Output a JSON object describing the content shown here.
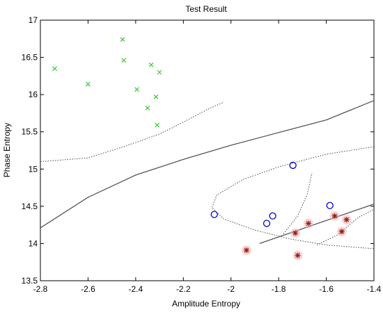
{
  "chart_data": {
    "type": "scatter",
    "title": "Test Result",
    "xlabel": "Amplitude Entropy",
    "ylabel": "Phase Entropy",
    "xlim": [
      -2.8,
      -1.4
    ],
    "ylim": [
      13.5,
      17
    ],
    "xticks": [
      -2.8,
      -2.6,
      -2.4,
      -2.2,
      -2.0,
      -1.8,
      -1.6,
      -1.4
    ],
    "xtick_labels": [
      "-2.8",
      "-2.6",
      "-2.4",
      "-2.2",
      "-2",
      "-1.8",
      "-1.6",
      "-1.4"
    ],
    "yticks": [
      13.5,
      14,
      14.5,
      15,
      15.5,
      16,
      16.5,
      17
    ],
    "ytick_labels": [
      "13.5",
      "14",
      "14.5",
      "15",
      "15.5",
      "16",
      "16.5",
      "17"
    ],
    "grid": false,
    "series": [
      {
        "marker": "x",
        "color": "#33cc33",
        "points": [
          [
            -2.74,
            16.35
          ],
          [
            -2.6,
            16.14
          ],
          [
            -2.455,
            16.74
          ],
          [
            -2.45,
            16.46
          ],
          [
            -2.395,
            16.07
          ],
          [
            -2.335,
            16.4
          ],
          [
            -2.315,
            15.97
          ],
          [
            -2.3,
            16.3
          ],
          [
            -2.35,
            15.82
          ],
          [
            -2.31,
            15.59
          ]
        ]
      },
      {
        "marker": "o",
        "color": "#0000cc",
        "points": [
          [
            -2.07,
            14.39
          ],
          [
            -1.85,
            14.27
          ],
          [
            -1.825,
            14.37
          ],
          [
            -1.74,
            15.05
          ],
          [
            -1.585,
            14.51
          ]
        ]
      },
      {
        "marker": "*",
        "color": "#8b2500",
        "points": [
          [
            -1.935,
            13.91
          ],
          [
            -1.73,
            14.14
          ],
          [
            -1.72,
            13.84
          ],
          [
            -1.675,
            14.27
          ],
          [
            -1.565,
            14.37
          ],
          [
            -1.535,
            14.16
          ],
          [
            -1.515,
            14.32
          ]
        ]
      }
    ],
    "lines": [
      {
        "style": "solid",
        "color": "#555555",
        "points": [
          [
            -2.8,
            14.21
          ],
          [
            -2.6,
            14.62
          ],
          [
            -2.4,
            14.92
          ],
          [
            -2.2,
            15.13
          ],
          [
            -2.0,
            15.32
          ],
          [
            -1.8,
            15.49
          ],
          [
            -1.6,
            15.66
          ],
          [
            -1.4,
            15.92
          ]
        ]
      },
      {
        "style": "solid",
        "color": "#555555",
        "points": [
          [
            -1.88,
            14.0
          ],
          [
            -1.4,
            14.53
          ]
        ]
      },
      {
        "style": "dotted",
        "color": "#555555",
        "points": [
          [
            -2.8,
            15.1
          ],
          [
            -2.6,
            15.15
          ],
          [
            -2.45,
            15.3
          ],
          [
            -2.3,
            15.47
          ],
          [
            -2.2,
            15.63
          ],
          [
            -2.1,
            15.8
          ],
          [
            -2.03,
            15.9
          ]
        ]
      },
      {
        "style": "dotted",
        "color": "#555555",
        "points": [
          [
            -1.4,
            15.3
          ],
          [
            -1.6,
            15.2
          ],
          [
            -1.8,
            15.03
          ],
          [
            -1.95,
            14.86
          ],
          [
            -2.06,
            14.65
          ],
          [
            -2.08,
            14.48
          ],
          [
            -2.03,
            14.33
          ],
          [
            -1.9,
            14.18
          ],
          [
            -1.75,
            14.06
          ],
          [
            -1.6,
            13.98
          ],
          [
            -1.4,
            13.93
          ]
        ]
      },
      {
        "style": "dotted",
        "color": "#555555",
        "points": [
          [
            -1.78,
            14.13
          ],
          [
            -1.72,
            14.37
          ],
          [
            -1.68,
            14.66
          ],
          [
            -1.66,
            14.95
          ]
        ]
      },
      {
        "style": "dotted",
        "color": "#555555",
        "points": [
          [
            -1.64,
            13.98
          ],
          [
            -1.55,
            14.12
          ],
          [
            -1.47,
            14.34
          ],
          [
            -1.4,
            14.46
          ]
        ]
      }
    ]
  }
}
